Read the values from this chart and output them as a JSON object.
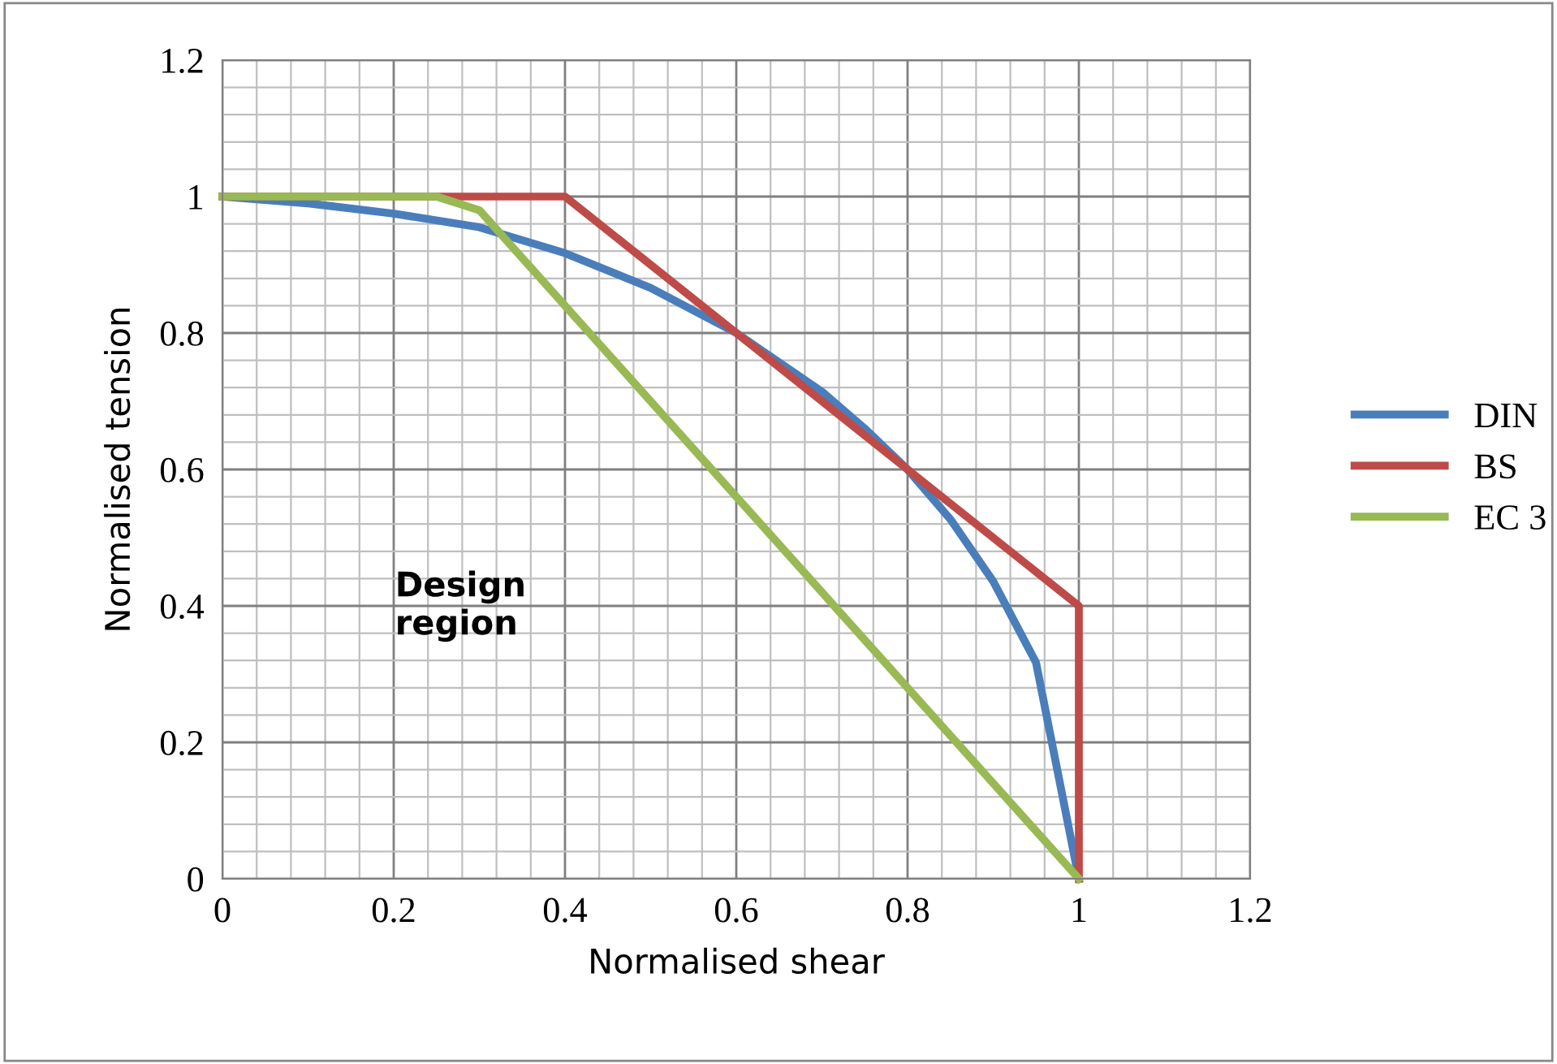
{
  "chart_data": {
    "type": "line",
    "xlabel": "Normalised shear",
    "ylabel": "Normalised tension",
    "xlim": [
      0,
      1.2
    ],
    "ylim": [
      0,
      1.2
    ],
    "xticks": [
      0,
      0.2,
      0.4,
      0.6,
      0.8,
      1,
      1.2
    ],
    "yticks": [
      0,
      0.2,
      0.4,
      0.6,
      0.8,
      1,
      1.2
    ],
    "grid": true,
    "legend": "right",
    "marker": "none",
    "line_style": "solid",
    "annotations": [
      "Design\nregion"
    ],
    "series": [
      {
        "name": "DIN",
        "color": "#4a7ebb",
        "x": [
          0,
          0.1,
          0.2,
          0.3,
          0.4,
          0.5,
          0.6,
          0.7,
          0.75,
          0.8,
          0.85,
          0.9,
          0.95,
          1
        ],
        "values": [
          1,
          0.99,
          0.975,
          0.955,
          0.917,
          0.866,
          0.8,
          0.714,
          0.66,
          0.6,
          0.527,
          0.436,
          0.317,
          0
        ]
      },
      {
        "name": "BS",
        "color": "#be4b48",
        "x": [
          0,
          0.4,
          1,
          1
        ],
        "values": [
          1,
          1,
          0.4,
          0
        ]
      },
      {
        "name": "EC 3",
        "color": "#98b954",
        "x": [
          0,
          0.25,
          0.3,
          1
        ],
        "values": [
          1,
          1,
          0.98,
          0
        ]
      }
    ]
  }
}
